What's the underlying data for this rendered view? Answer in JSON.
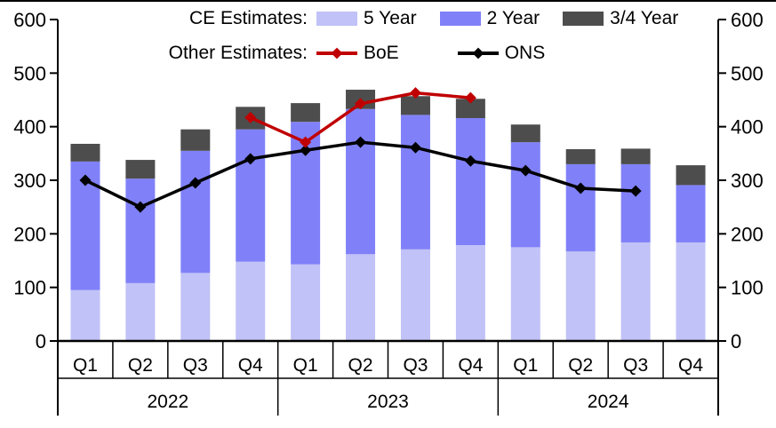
{
  "chart_data": {
    "type": "bar",
    "subtype": "stacked-bar-with-lines",
    "title": "",
    "categories": [
      "Q1",
      "Q2",
      "Q3",
      "Q4",
      "Q1",
      "Q2",
      "Q3",
      "Q4",
      "Q1",
      "Q2",
      "Q3",
      "Q4"
    ],
    "year_groups": [
      {
        "label": "2022",
        "span": 4
      },
      {
        "label": "2023",
        "span": 4
      },
      {
        "label": "2024",
        "span": 4
      }
    ],
    "ylim": [
      0,
      600
    ],
    "yticks": [
      0,
      100,
      200,
      300,
      400,
      500,
      600
    ],
    "grid": "off",
    "axis_sides": [
      "left",
      "right"
    ],
    "bar_series": [
      {
        "name": "5 Year",
        "color": "#c1c2f7",
        "values": [
          95,
          108,
          127,
          148,
          143,
          162,
          171,
          179,
          175,
          167,
          184,
          184
        ]
      },
      {
        "name": "2 Year",
        "color": "#8081f8",
        "values": [
          240,
          195,
          228,
          247,
          266,
          271,
          251,
          237,
          196,
          163,
          146,
          107
        ]
      },
      {
        "name": "3/4 Year",
        "color": "#4d4d4d",
        "values": [
          33,
          35,
          40,
          42,
          35,
          36,
          35,
          36,
          33,
          28,
          29,
          37
        ]
      }
    ],
    "line_series": [
      {
        "name": "ONS",
        "color": "#000000",
        "marker": "diamond",
        "values": [
          300,
          250,
          295,
          340,
          356,
          371,
          361,
          336,
          318,
          285,
          280,
          null
        ]
      },
      {
        "name": "BoE",
        "color": "#c00000",
        "marker": "diamond",
        "values": [
          null,
          null,
          null,
          417,
          371,
          443,
          463,
          454,
          null,
          null,
          null,
          null
        ]
      }
    ],
    "legend": {
      "position": "top-inside",
      "row1_label": "CE Estimates:",
      "row2_label": "Other Estimates:"
    }
  }
}
